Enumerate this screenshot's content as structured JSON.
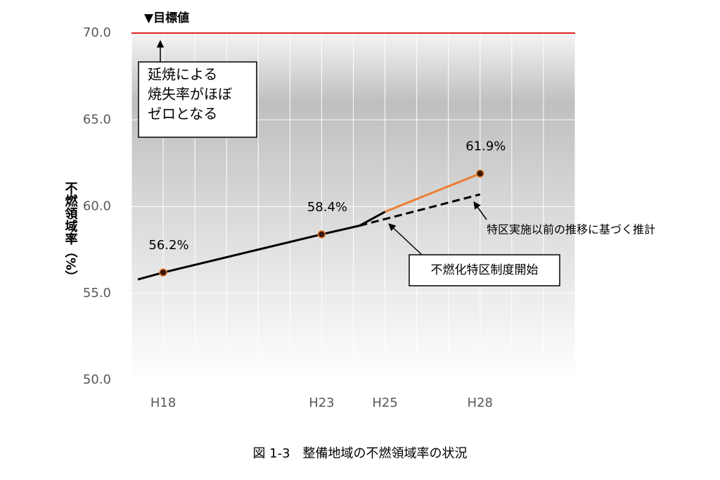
{
  "chart_data": {
    "type": "line",
    "ylabel": "不燃領域率（%）",
    "caption": "図 1-3　整備地域の不燃領域率の状況",
    "xlim": [
      17,
      31
    ],
    "xticks": [
      {
        "value": 18,
        "label": "H18"
      },
      {
        "value": 23,
        "label": "H23"
      },
      {
        "value": 25,
        "label": "H25"
      },
      {
        "value": 28,
        "label": "H28"
      }
    ],
    "ylim": [
      50,
      70
    ],
    "yticks": [
      {
        "value": 50,
        "label": "50.0"
      },
      {
        "value": 55,
        "label": "55.0"
      },
      {
        "value": 60,
        "label": "60.0"
      },
      {
        "value": 65,
        "label": "65.0"
      },
      {
        "value": 70,
        "label": "70.0"
      }
    ],
    "grid": true,
    "target": {
      "value": 70,
      "label": "▼目標値",
      "color": "#e02020"
    },
    "series": [
      {
        "color": "#000000",
        "dashed": false,
        "x": [
          17.2,
          18,
          23,
          24.2,
          25
        ],
        "values": [
          55.8,
          56.2,
          58.4,
          58.9,
          59.7
        ],
        "value_labels": [
          null,
          "56.2%",
          "58.4%",
          null,
          null
        ]
      },
      {
        "color": "#ed7d31",
        "dashed": false,
        "x": [
          25,
          28
        ],
        "values": [
          59.7,
          61.9
        ],
        "value_labels": [
          null,
          "61.9%"
        ]
      },
      {
        "color": "#000000",
        "dashed": true,
        "x": [
          24.2,
          28
        ],
        "values": [
          58.9,
          60.7
        ],
        "value_labels": [
          null,
          null
        ]
      }
    ],
    "annotations": {
      "target_note": [
        "延焼による",
        "焼失率がほぼ",
        "ゼロとなる"
      ],
      "start_note": "不燃化特区制度開始",
      "estimate_note": "特区実施以前の推移に基づく推計"
    }
  }
}
